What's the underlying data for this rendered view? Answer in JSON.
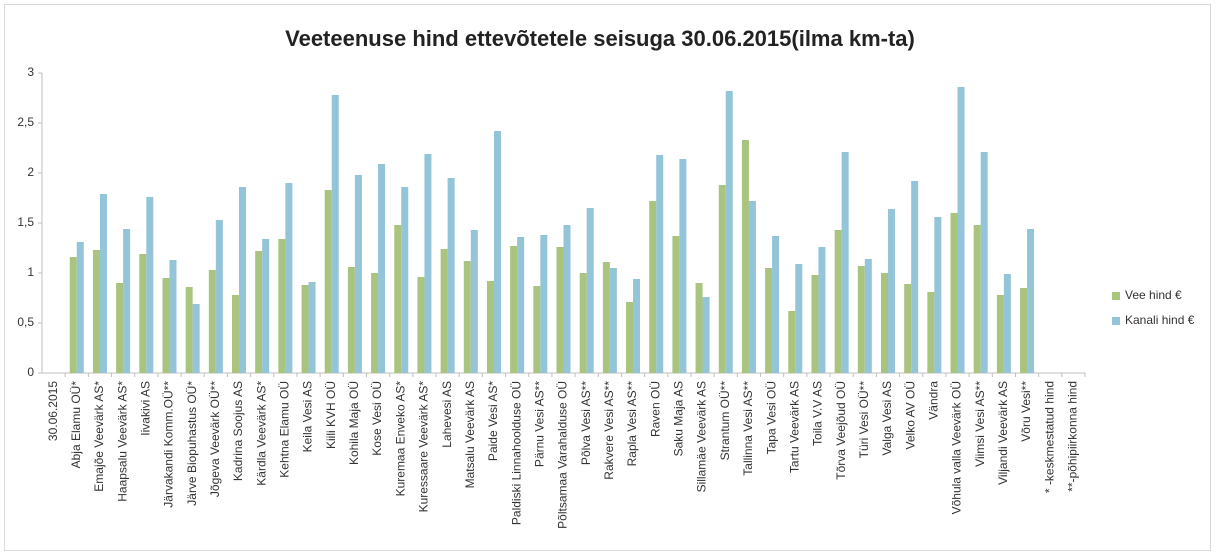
{
  "chart_data": {
    "type": "bar",
    "title": "Veeteenuse hind ettevõtetele seisuga 30.06.2015(ilma km-ta)",
    "categories": [
      "30.06.2015",
      "Abja Elamu OÜ*",
      "Emajõe Veevärk AS*",
      "Haapsalu Veevärk AS*",
      "Iivakivi AS",
      "Järvakandi Komm.OÜ**",
      "Järve Biopuhastus OÜ*",
      "Jõgeva Veevärk OÜ**",
      "Kadrina Soojus AS",
      "Kärdla Veevärk AS*",
      "Kehtna Elamu OÜ",
      "Keila Vesi AS",
      "Kiili KVH OÜ",
      "Kohila Maja OÜ",
      "Kose Vesi OÜ",
      "Kuremaa Enveko AS*",
      "Kuressaare Veevärk AS*",
      "Lahevesi AS",
      "Matsalu Veevärk AS",
      "Paide Vesi AS*",
      "Paldiski Linnahoolduse  OÜ",
      "Pärnu Vesi AS**",
      "Põltsamaa Varahalduse OÜ",
      "Põlva Vesi  AS**",
      "Rakvere Vesi AS**",
      "Rapla Vesi AS**",
      "Raven OÜ",
      "Saku Maja AS",
      "Sillamäe Veevärk AS",
      "Strantum OÜ**",
      "Tallinna Vesi AS**",
      "Tapa Vesi OÜ",
      "Tartu Veevärk AS",
      "Toila V.V AS",
      "Tõrva Veejõud OÜ",
      "Türi Vesi OÜ**",
      "Valga Vesi AS",
      "Velko AV OÜ",
      "Vändra",
      "Võhula valla Veevärk OÜ",
      "Viimsi Vesi AS**",
      "Viljandi Veevärk AS",
      "Võru Vesi**",
      "* -keskmestatud hind",
      "**-põhipiirkonna hind"
    ],
    "series": [
      {
        "name": "Vee hind €",
        "color": "#a9c47f",
        "values": [
          null,
          1.16,
          1.23,
          0.9,
          1.19,
          0.95,
          0.86,
          1.03,
          0.78,
          1.22,
          1.34,
          0.88,
          1.83,
          1.06,
          1.0,
          1.48,
          0.96,
          1.24,
          1.12,
          0.92,
          1.27,
          0.87,
          1.26,
          1.0,
          1.11,
          0.71,
          1.72,
          1.37,
          0.9,
          1.88,
          2.33,
          1.05,
          0.62,
          0.98,
          1.43,
          1.07,
          1.0,
          0.89,
          0.81,
          1.6,
          1.48,
          0.78,
          0.85,
          null,
          null
        ]
      },
      {
        "name": "Kanali hind €",
        "color": "#93c4d7",
        "values": [
          null,
          1.31,
          1.79,
          1.44,
          1.76,
          1.13,
          0.69,
          1.53,
          1.86,
          1.34,
          1.9,
          0.91,
          2.78,
          1.98,
          2.09,
          1.86,
          2.19,
          1.95,
          1.43,
          2.42,
          1.36,
          1.38,
          1.48,
          1.65,
          1.05,
          0.94,
          2.18,
          2.14,
          0.76,
          2.82,
          1.72,
          1.37,
          1.09,
          1.26,
          2.21,
          1.14,
          1.64,
          1.92,
          1.56,
          2.86,
          2.21,
          0.99,
          1.44,
          null,
          null
        ]
      }
    ],
    "ylim": [
      0,
      3
    ],
    "yticks": [
      0,
      {
        "value": 0.5,
        "label": "0,5"
      },
      1,
      {
        "value": 1.5,
        "label": "1,5"
      },
      2,
      {
        "value": 2.5,
        "label": "2,5"
      },
      3
    ],
    "grid": false,
    "legend": "right"
  }
}
